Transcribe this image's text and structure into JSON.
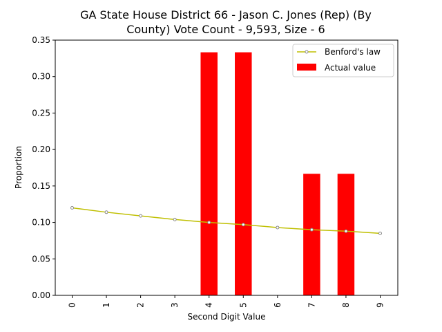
{
  "chart_data": {
    "type": "bar",
    "title_lines": [
      "GA State House District 66 - Jason C. Jones (Rep) (By",
      "County) Vote Count - 9,593, Size - 6"
    ],
    "xlabel": "Second Digit Value",
    "ylabel": "Proportion",
    "categories": [
      "0",
      "1",
      "2",
      "3",
      "4",
      "5",
      "6",
      "7",
      "8",
      "9"
    ],
    "ylim": [
      0,
      0.35
    ],
    "yticks": [
      "0.00",
      "0.05",
      "0.10",
      "0.15",
      "0.20",
      "0.25",
      "0.30",
      "0.35"
    ],
    "grid": false,
    "legend_position": "top-right",
    "series": [
      {
        "name": "Benford's law",
        "kind": "line",
        "color": "#bfbf00",
        "values": [
          0.12,
          0.114,
          0.109,
          0.104,
          0.1,
          0.097,
          0.093,
          0.09,
          0.088,
          0.085
        ]
      },
      {
        "name": "Actual value",
        "kind": "bar",
        "color": "#ff0000",
        "values": [
          0,
          0,
          0,
          0,
          0.3333,
          0.3333,
          0,
          0.1667,
          0.1667,
          0
        ]
      }
    ]
  }
}
